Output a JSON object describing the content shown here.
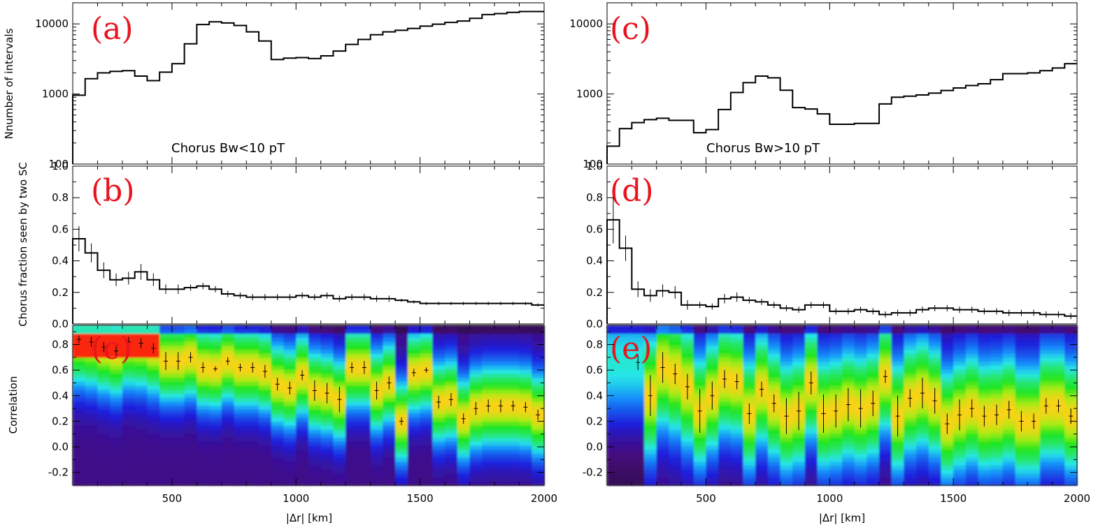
{
  "chart_data": [
    {
      "type": "line",
      "panel": "(a)",
      "annotation": "Chorus Bw<10 pT",
      "ylabel": "Nnumber of intervals",
      "yscale": "log",
      "ylim": [
        100,
        20000
      ],
      "yticks": [
        "100",
        "1000",
        "10000"
      ],
      "xlim": [
        100,
        2000
      ],
      "bin_edges_start": 100,
      "bin_width": 50,
      "values": [
        960,
        1650,
        2000,
        2100,
        2150,
        1800,
        1550,
        2050,
        2700,
        5200,
        9800,
        10700,
        10300,
        9500,
        7700,
        5700,
        3100,
        3250,
        3300,
        3200,
        3500,
        4100,
        5100,
        6000,
        7000,
        7700,
        8100,
        8600,
        9300,
        9900,
        10500,
        11000,
        12000,
        13600,
        14000,
        14600,
        15000,
        15000
      ]
    },
    {
      "type": "line",
      "panel": "(b)",
      "ylabel": "Chorus fraction seen by two SC",
      "ylim": [
        0,
        1.0
      ],
      "yticks": [
        "0.0",
        "0.2",
        "0.4",
        "0.6",
        "0.8",
        "1.0"
      ],
      "xlim": [
        100,
        2000
      ],
      "bin_edges_start": 100,
      "bin_width": 50,
      "values": [
        0.54,
        0.45,
        0.34,
        0.28,
        0.29,
        0.33,
        0.28,
        0.22,
        0.22,
        0.23,
        0.24,
        0.22,
        0.19,
        0.18,
        0.17,
        0.17,
        0.17,
        0.17,
        0.18,
        0.17,
        0.18,
        0.16,
        0.17,
        0.17,
        0.16,
        0.16,
        0.15,
        0.14,
        0.13,
        0.13,
        0.13,
        0.13,
        0.13,
        0.13,
        0.13,
        0.13,
        0.13,
        0.12
      ],
      "errors": [
        0.08,
        0.06,
        0.05,
        0.04,
        0.04,
        0.05,
        0.04,
        0.03,
        0.03,
        0.02,
        0.02,
        0.02,
        0.02,
        0.02,
        0.02,
        0.02,
        0.02,
        0.02,
        0.02,
        0.02,
        0.02,
        0.02,
        0.02,
        0.02,
        0.02,
        0.02,
        0.01,
        0.01,
        0.01,
        0.01,
        0.01,
        0.01,
        0.01,
        0.01,
        0.01,
        0.01,
        0.01,
        0.01
      ]
    },
    {
      "type": "heatmap",
      "panel": "(c)",
      "ylabel": "Correlation",
      "xlabel": "|Δr| [km]",
      "ylim": [
        -0.3,
        0.95
      ],
      "yticks": [
        "-0.2",
        "0.0",
        "0.2",
        "0.4",
        "0.6",
        "0.8"
      ],
      "xlim": [
        100,
        2000
      ],
      "xticks": [
        "500",
        "1000",
        "1500",
        "2000"
      ],
      "points_x": [
        125,
        175,
        225,
        275,
        325,
        375,
        425,
        475,
        525,
        575,
        625,
        675,
        725,
        775,
        825,
        875,
        925,
        975,
        1025,
        1075,
        1125,
        1175,
        1225,
        1275,
        1325,
        1375,
        1425,
        1475,
        1525,
        1575,
        1625,
        1675,
        1725,
        1775,
        1825,
        1875,
        1925,
        1975
      ],
      "points_y": [
        0.84,
        0.82,
        0.78,
        0.75,
        0.82,
        0.81,
        0.77,
        0.67,
        0.67,
        0.7,
        0.62,
        0.61,
        0.67,
        0.62,
        0.62,
        0.59,
        0.49,
        0.46,
        0.56,
        0.44,
        0.42,
        0.37,
        0.62,
        0.62,
        0.44,
        0.5,
        0.2,
        0.58,
        0.6,
        0.35,
        0.37,
        0.22,
        0.3,
        0.32,
        0.32,
        0.32,
        0.31,
        0.25
      ],
      "errors": [
        0.03,
        0.04,
        0.04,
        0.04,
        0.04,
        0.04,
        0.04,
        0.07,
        0.07,
        0.04,
        0.04,
        0.02,
        0.03,
        0.03,
        0.04,
        0.05,
        0.05,
        0.05,
        0.04,
        0.08,
        0.08,
        0.1,
        0.04,
        0.05,
        0.07,
        0.05,
        0.03,
        0.03,
        0.02,
        0.05,
        0.05,
        0.04,
        0.05,
        0.05,
        0.05,
        0.04,
        0.04,
        0.04
      ]
    },
    {
      "type": "line",
      "panel": "(c)",
      "annotation": "Chorus Bw>10 pT",
      "yscale": "log",
      "ylim": [
        100,
        20000
      ],
      "yticks": [
        "100",
        "1000",
        "10000"
      ],
      "xlim": [
        100,
        2000
      ],
      "bin_edges_start": 100,
      "bin_width": 50,
      "values": [
        180,
        320,
        390,
        430,
        450,
        420,
        420,
        280,
        310,
        600,
        1050,
        1450,
        1800,
        1700,
        1130,
        640,
        610,
        520,
        370,
        370,
        380,
        380,
        720,
        900,
        930,
        970,
        1030,
        1120,
        1220,
        1320,
        1400,
        1600,
        1950,
        1950,
        2000,
        2150,
        2350,
        2700
      ]
    },
    {
      "type": "line",
      "panel": "(d)",
      "ylim": [
        0,
        1.0
      ],
      "yticks": [
        "0.0",
        "0.2",
        "0.4",
        "0.6",
        "0.8",
        "1.0"
      ],
      "xlim": [
        100,
        2000
      ],
      "bin_edges_start": 100,
      "bin_width": 50,
      "values": [
        0.66,
        0.48,
        0.22,
        0.18,
        0.21,
        0.2,
        0.12,
        0.12,
        0.11,
        0.16,
        0.17,
        0.15,
        0.14,
        0.12,
        0.1,
        0.09,
        0.12,
        0.12,
        0.08,
        0.08,
        0.09,
        0.08,
        0.06,
        0.07,
        0.07,
        0.09,
        0.1,
        0.1,
        0.09,
        0.09,
        0.08,
        0.08,
        0.07,
        0.07,
        0.07,
        0.06,
        0.06,
        0.05
      ],
      "errors": [
        0.15,
        0.08,
        0.05,
        0.04,
        0.04,
        0.04,
        0.03,
        0.02,
        0.02,
        0.03,
        0.03,
        0.02,
        0.02,
        0.02,
        0.02,
        0.02,
        0.02,
        0.02,
        0.02,
        0.02,
        0.02,
        0.02,
        0.02,
        0.02,
        0.02,
        0.02,
        0.02,
        0.02,
        0.02,
        0.02,
        0.02,
        0.02,
        0.02,
        0.02,
        0.02,
        0.02,
        0.02,
        0.02
      ]
    },
    {
      "type": "heatmap",
      "panel": "(e)",
      "xlabel": "|Δr| [km]",
      "ylim": [
        -0.3,
        0.95
      ],
      "yticks": [
        "-0.2",
        "0.0",
        "0.2",
        "0.4",
        "0.6",
        "0.8"
      ],
      "xlim": [
        100,
        2000
      ],
      "xticks": [
        "500",
        "1000",
        "1500",
        "2000"
      ],
      "points_x": [
        225,
        275,
        325,
        375,
        425,
        475,
        525,
        575,
        625,
        675,
        725,
        775,
        825,
        875,
        925,
        975,
        1025,
        1075,
        1125,
        1175,
        1225,
        1275,
        1325,
        1375,
        1425,
        1475,
        1525,
        1575,
        1625,
        1675,
        1725,
        1775,
        1825,
        1875,
        1925,
        1975
      ],
      "points_y": [
        0.66,
        0.4,
        0.62,
        0.57,
        0.47,
        0.28,
        0.4,
        0.53,
        0.51,
        0.26,
        0.45,
        0.34,
        0.24,
        0.28,
        0.5,
        0.26,
        0.28,
        0.33,
        0.3,
        0.34,
        0.55,
        0.24,
        0.38,
        0.42,
        0.36,
        0.18,
        0.25,
        0.3,
        0.24,
        0.25,
        0.29,
        0.2,
        0.2,
        0.32,
        0.32,
        0.24
      ],
      "errors": [
        0.06,
        0.16,
        0.12,
        0.08,
        0.1,
        0.17,
        0.11,
        0.07,
        0.06,
        0.08,
        0.06,
        0.07,
        0.14,
        0.15,
        0.09,
        0.15,
        0.13,
        0.13,
        0.15,
        0.1,
        0.05,
        0.16,
        0.07,
        0.12,
        0.1,
        0.08,
        0.12,
        0.07,
        0.08,
        0.08,
        0.07,
        0.08,
        0.06,
        0.06,
        0.05,
        0.06
      ]
    }
  ]
}
